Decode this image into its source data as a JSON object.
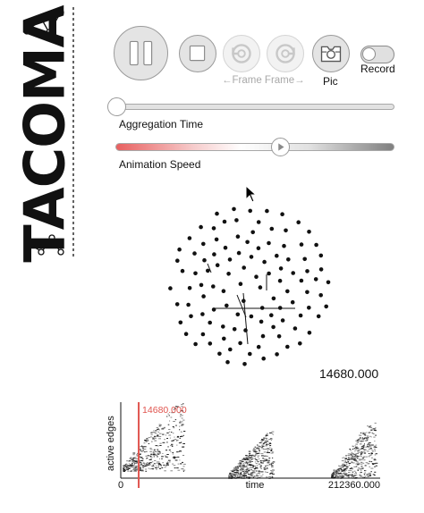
{
  "logo": {
    "text": "TACOMA"
  },
  "controls": {
    "frame_label": "←Frame Frame→",
    "pic_label": "Pic",
    "record_label": "Record",
    "record_on": false
  },
  "sliders": {
    "aggregation": {
      "label": "Aggregation Time",
      "level": 0.0
    },
    "speed": {
      "label": "Animation Speed",
      "level": 0.59
    }
  },
  "network": {
    "time_readout": "14680.000"
  },
  "timeline": {
    "ylabel": "active edges",
    "xlabel": "time",
    "x_min_label": "0",
    "x_max_label": "212360.000",
    "marker_label": "14680.000",
    "x_min": 0,
    "x_max": 212360,
    "marker_value": 14680
  },
  "colors": {
    "accent_red": "#e0554f",
    "button_fill": "#e4e4e4",
    "disabled_icon": "#c8c8c8"
  }
}
